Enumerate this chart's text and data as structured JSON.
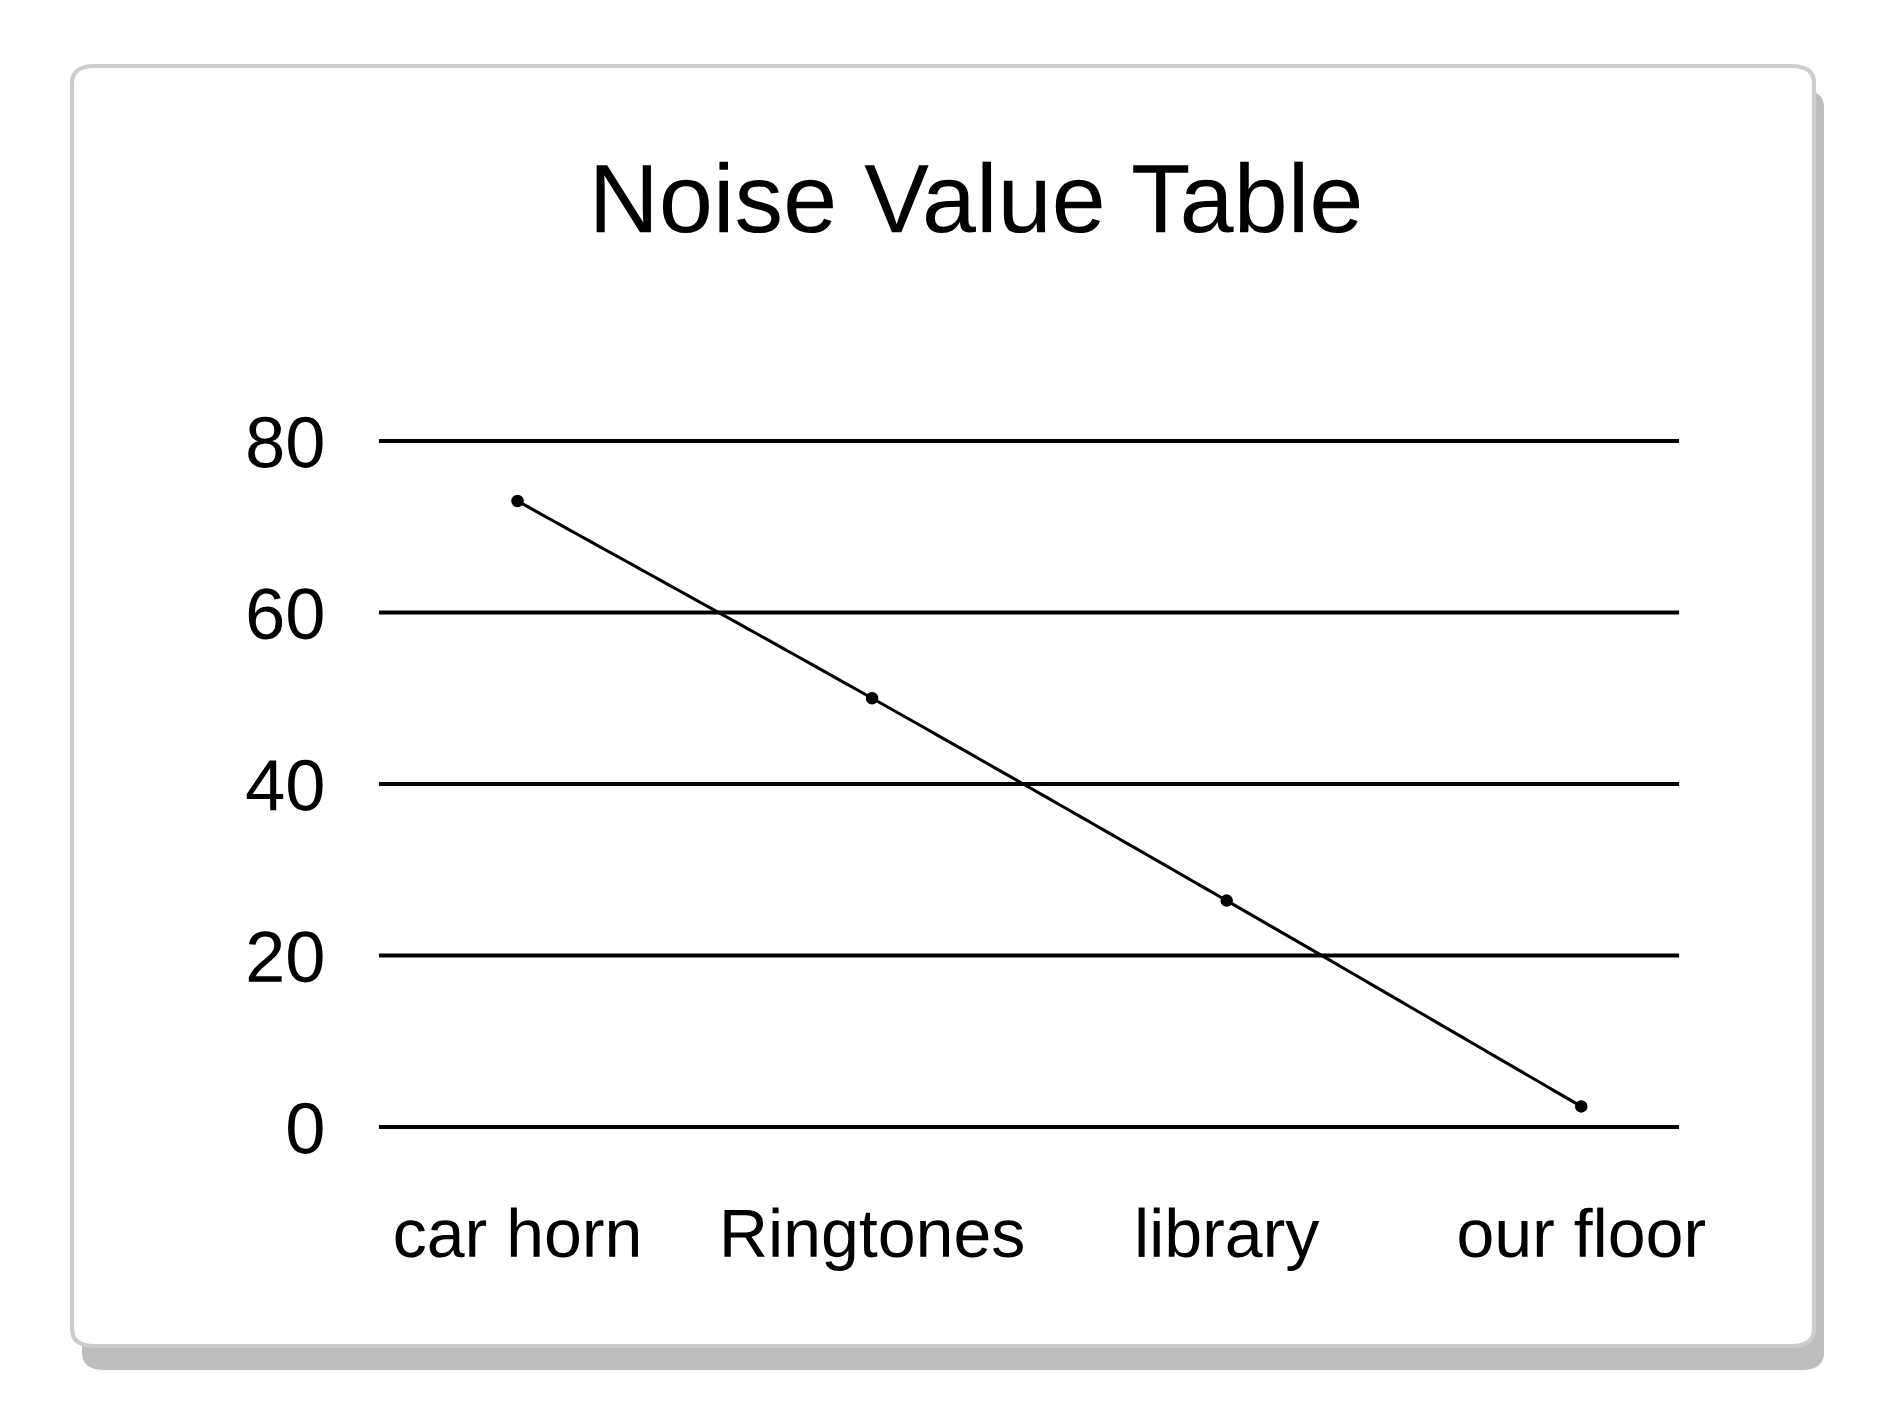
{
  "chart_data": {
    "type": "line",
    "title": "Noise Value Table",
    "categories": [
      "car horn",
      "Ringtones",
      "library",
      "our floor"
    ],
    "values": [
      73,
      50,
      26.4,
      2.4
    ],
    "color": "#000000",
    "ylim": [
      0,
      80
    ],
    "yticks": [
      0,
      20,
      40,
      60,
      80
    ],
    "grid": "y",
    "marker": "circle",
    "line_style": "solid"
  }
}
